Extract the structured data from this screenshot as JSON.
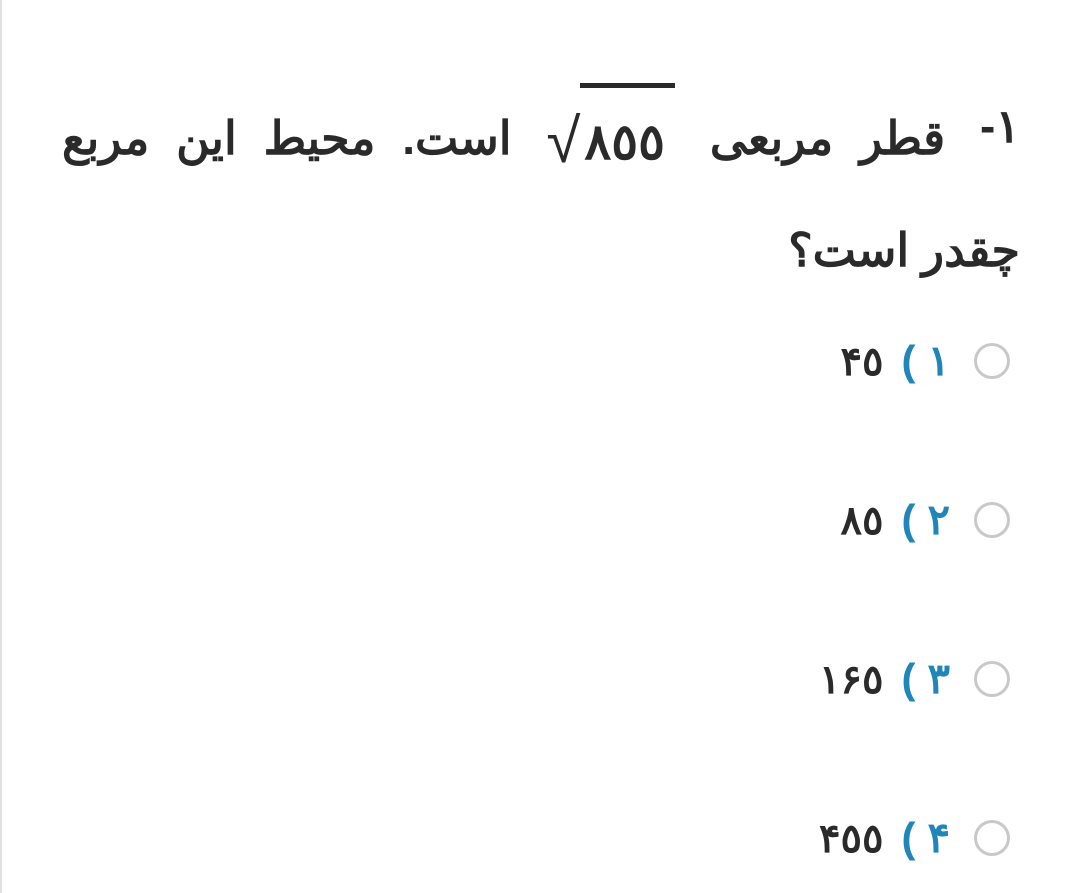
{
  "question": {
    "number": "۱-",
    "text_part1": "قطر مربعی",
    "sqrt_value": "۸٥٥",
    "text_part2": "است. محیط این مربع چقدر است؟"
  },
  "options": [
    {
      "number": "۱",
      "value": "۴٥"
    },
    {
      "number": "۲",
      "value": "۸٥"
    },
    {
      "number": "۳",
      "value": "۱۶٥"
    },
    {
      "number": "۴",
      "value": "۴٥٥"
    }
  ],
  "colors": {
    "text": "#2a2a2a",
    "option_number": "#2086b8",
    "radio_border": "#c8c8c8",
    "background": "#ffffff"
  },
  "typography": {
    "question_fontsize": 46,
    "option_number_fontsize": 42,
    "option_value_fontsize": 40,
    "font_weight": "bold"
  }
}
